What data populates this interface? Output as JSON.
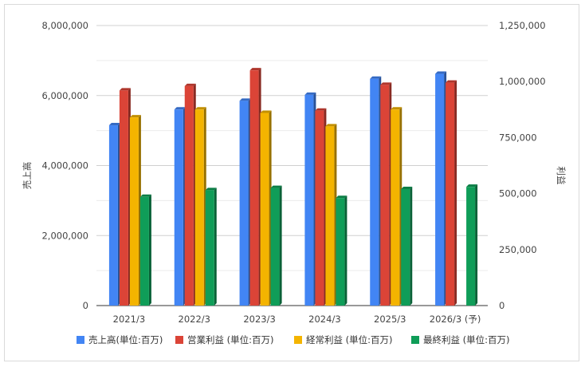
{
  "chart_data": {
    "type": "bar",
    "categories": [
      "2021/3",
      "2022/3",
      "2023/3",
      "2024/3",
      "2025/3",
      "2026/3 (予)"
    ],
    "series": [
      {
        "name": "売上高(単位:百万)",
        "axis": "left",
        "color": "#4285f4",
        "values": [
          5150000,
          5600000,
          5850000,
          6020000,
          6480000,
          6620000
        ]
      },
      {
        "name": "営業利益 (単位:百万)",
        "axis": "right",
        "color": "#db4437",
        "values": [
          960000,
          980000,
          1050000,
          870000,
          985000,
          995000
        ]
      },
      {
        "name": "経常利益 (単位:百万)",
        "axis": "right",
        "color": "#f4b400",
        "values": [
          840000,
          875000,
          860000,
          800000,
          875000,
          null
        ]
      },
      {
        "name": "最終利益 (単位:百万)",
        "axis": "right",
        "color": "#0f9d58",
        "values": [
          485000,
          515000,
          525000,
          480000,
          520000,
          530000
        ]
      }
    ],
    "y_left": {
      "label": "売上高",
      "min": 0,
      "max": 8000000,
      "ticks": [
        "0",
        "2,000,000",
        "4,000,000",
        "6,000,000",
        "8,000,000"
      ]
    },
    "y_right": {
      "label": "利益",
      "min": 0,
      "max": 1250000,
      "ticks": [
        "0",
        "250,000",
        "500,000",
        "750,000",
        "1,000,000",
        "1,250,000"
      ]
    },
    "grid": true,
    "legend_position": "bottom"
  }
}
